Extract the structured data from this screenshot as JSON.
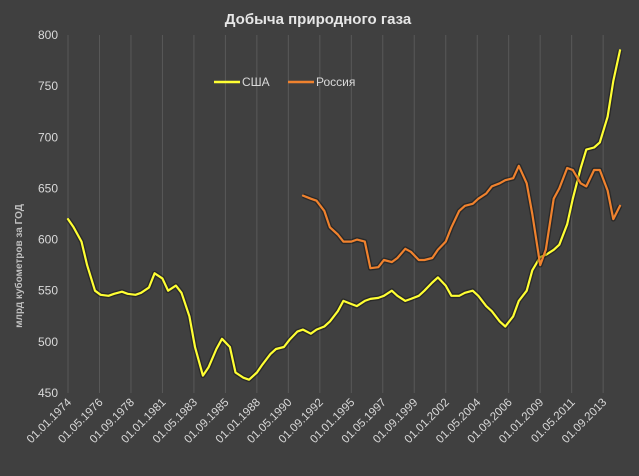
{
  "chart_data": {
    "type": "line",
    "title": "Добыча природного газа",
    "ylabel": "млрд кубометров за ГОД",
    "xlabel": "",
    "ylim": [
      450,
      800
    ],
    "yticks": [
      450,
      500,
      550,
      600,
      650,
      700,
      750,
      800
    ],
    "xlim": [
      "01.01.1974",
      "01.12.2014"
    ],
    "xticks": [
      "01.01.1974",
      "01.05.1976",
      "01.09.1978",
      "01.01.1981",
      "01.05.1983",
      "01.09.1985",
      "01.01.1988",
      "01.05.1990",
      "01.09.1992",
      "01.01.1995",
      "01.05.1997",
      "01.09.1999",
      "01.01.2002",
      "01.05.2004",
      "01.09.2006",
      "01.01.2009",
      "01.05.2011",
      "01.09.2013"
    ],
    "grid": "vertical",
    "legend": "top-center",
    "series": [
      {
        "name": "США",
        "color": "#ffff33",
        "points": [
          [
            "01.01.1974",
            620
          ],
          [
            "01.06.1974",
            612
          ],
          [
            "01.01.1975",
            598
          ],
          [
            "01.06.1975",
            575
          ],
          [
            "01.01.1976",
            550
          ],
          [
            "01.06.1976",
            546
          ],
          [
            "01.01.1977",
            545
          ],
          [
            "01.06.1977",
            547
          ],
          [
            "01.01.1978",
            549
          ],
          [
            "01.06.1978",
            547
          ],
          [
            "01.01.1979",
            546
          ],
          [
            "01.06.1979",
            548
          ],
          [
            "01.01.1980",
            553
          ],
          [
            "01.06.1980",
            567
          ],
          [
            "01.01.1981",
            562
          ],
          [
            "01.06.1981",
            550
          ],
          [
            "01.01.1982",
            555
          ],
          [
            "01.06.1982",
            548
          ],
          [
            "01.01.1983",
            525
          ],
          [
            "01.06.1983",
            495
          ],
          [
            "01.01.1984",
            467
          ],
          [
            "01.06.1984",
            475
          ],
          [
            "01.01.1985",
            493
          ],
          [
            "01.06.1985",
            503
          ],
          [
            "01.01.1986",
            495
          ],
          [
            "01.06.1986",
            470
          ],
          [
            "01.01.1987",
            465
          ],
          [
            "01.06.1987",
            463
          ],
          [
            "01.01.1988",
            470
          ],
          [
            "01.06.1988",
            478
          ],
          [
            "01.01.1989",
            488
          ],
          [
            "01.06.1989",
            493
          ],
          [
            "01.01.1990",
            495
          ],
          [
            "01.06.1990",
            502
          ],
          [
            "01.01.1991",
            510
          ],
          [
            "01.06.1991",
            512
          ],
          [
            "01.01.1992",
            508
          ],
          [
            "01.06.1992",
            512
          ],
          [
            "01.01.1993",
            515
          ],
          [
            "01.06.1993",
            520
          ],
          [
            "01.01.1994",
            530
          ],
          [
            "01.06.1994",
            540
          ],
          [
            "01.01.1995",
            537
          ],
          [
            "01.06.1995",
            535
          ],
          [
            "01.01.1996",
            540
          ],
          [
            "01.06.1996",
            542
          ],
          [
            "01.01.1997",
            543
          ],
          [
            "01.06.1997",
            545
          ],
          [
            "01.01.1998",
            550
          ],
          [
            "01.06.1998",
            545
          ],
          [
            "01.01.1999",
            540
          ],
          [
            "01.06.1999",
            542
          ],
          [
            "01.01.2000",
            545
          ],
          [
            "01.06.2000",
            550
          ],
          [
            "01.01.2001",
            558
          ],
          [
            "01.06.2001",
            563
          ],
          [
            "01.01.2002",
            555
          ],
          [
            "01.06.2002",
            545
          ],
          [
            "01.01.2003",
            545
          ],
          [
            "01.06.2003",
            548
          ],
          [
            "01.01.2004",
            550
          ],
          [
            "01.06.2004",
            545
          ],
          [
            "01.01.2005",
            535
          ],
          [
            "01.06.2005",
            530
          ],
          [
            "01.01.2006",
            520
          ],
          [
            "01.06.2006",
            515
          ],
          [
            "01.01.2007",
            525
          ],
          [
            "01.06.2007",
            540
          ],
          [
            "01.01.2008",
            550
          ],
          [
            "01.06.2008",
            570
          ],
          [
            "01.01.2009",
            583
          ],
          [
            "01.06.2009",
            585
          ],
          [
            "01.01.2010",
            590
          ],
          [
            "01.06.2010",
            595
          ],
          [
            "01.01.2011",
            615
          ],
          [
            "01.06.2011",
            640
          ],
          [
            "01.01.2012",
            670
          ],
          [
            "01.06.2012",
            688
          ],
          [
            "01.01.2013",
            690
          ],
          [
            "01.06.2013",
            695
          ],
          [
            "01.01.2014",
            720
          ],
          [
            "01.06.2014",
            755
          ],
          [
            "01.12.2014",
            785
          ]
        ]
      },
      {
        "name": "Россия",
        "color": "#f0822e",
        "points": [
          [
            "01.06.1991",
            643
          ],
          [
            "01.01.1992",
            640
          ],
          [
            "01.06.1992",
            638
          ],
          [
            "01.01.1993",
            628
          ],
          [
            "01.06.1993",
            612
          ],
          [
            "01.01.1994",
            605
          ],
          [
            "01.06.1994",
            598
          ],
          [
            "01.01.1995",
            598
          ],
          [
            "01.06.1995",
            600
          ],
          [
            "01.01.1996",
            598
          ],
          [
            "01.06.1996",
            572
          ],
          [
            "01.01.1997",
            573
          ],
          [
            "01.06.1997",
            580
          ],
          [
            "01.01.1998",
            578
          ],
          [
            "01.06.1998",
            582
          ],
          [
            "01.01.1999",
            591
          ],
          [
            "01.06.1999",
            588
          ],
          [
            "01.01.2000",
            580
          ],
          [
            "01.06.2000",
            580
          ],
          [
            "01.01.2001",
            582
          ],
          [
            "01.06.2001",
            590
          ],
          [
            "01.01.2002",
            598
          ],
          [
            "01.06.2002",
            612
          ],
          [
            "01.01.2003",
            628
          ],
          [
            "01.06.2003",
            633
          ],
          [
            "01.01.2004",
            635
          ],
          [
            "01.06.2004",
            640
          ],
          [
            "01.01.2005",
            645
          ],
          [
            "01.06.2005",
            652
          ],
          [
            "01.01.2006",
            655
          ],
          [
            "01.06.2006",
            658
          ],
          [
            "01.01.2007",
            660
          ],
          [
            "01.06.2007",
            672
          ],
          [
            "01.01.2008",
            655
          ],
          [
            "01.06.2008",
            625
          ],
          [
            "01.01.2009",
            575
          ],
          [
            "01.06.2009",
            590
          ],
          [
            "01.01.2010",
            640
          ],
          [
            "01.06.2010",
            650
          ],
          [
            "01.01.2011",
            670
          ],
          [
            "01.06.2011",
            668
          ],
          [
            "01.01.2012",
            655
          ],
          [
            "01.06.2012",
            652
          ],
          [
            "01.01.2013",
            668
          ],
          [
            "01.06.2013",
            668
          ],
          [
            "01.01.2014",
            648
          ],
          [
            "01.06.2014",
            620
          ],
          [
            "01.12.2014",
            633
          ]
        ]
      }
    ]
  }
}
